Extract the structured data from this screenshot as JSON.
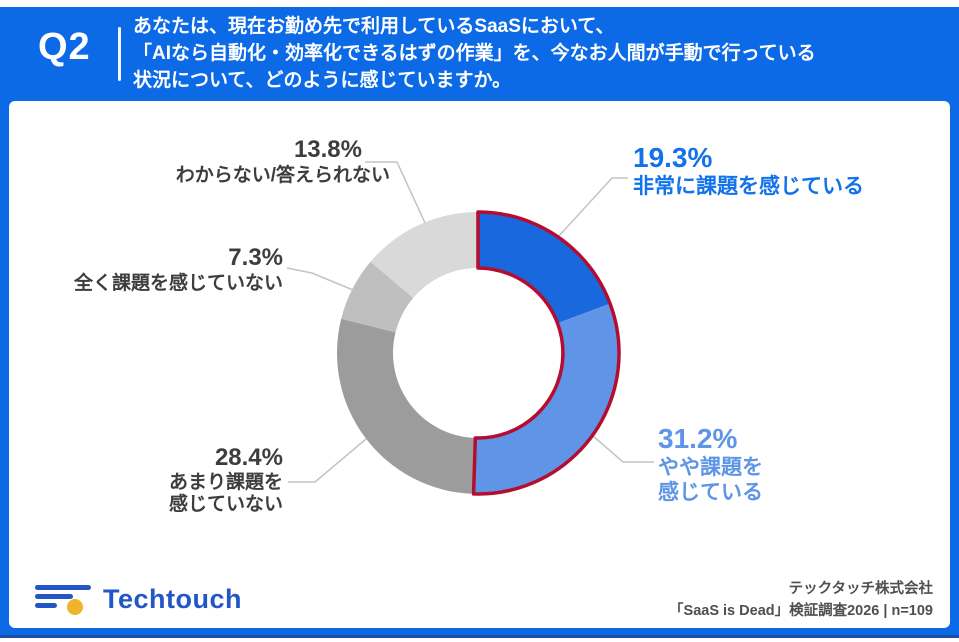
{
  "header": {
    "question_no": "Q2",
    "question_lines": [
      "あなたは、現在お勤め先で利用しているSaaSにおいて、",
      "「AIなら自動化・効率化できるはずの作業」を、今なお人間が手動で行っている",
      "状況について、どのように感じていますか。"
    ]
  },
  "chart_data": {
    "type": "pie",
    "subtype": "donut",
    "unit": "%",
    "start_angle_deg": 0,
    "direction": "clockwise",
    "segments": [
      {
        "label": "非常に課題を感じている",
        "value": 19.3,
        "color": "#1a68de",
        "highlighted": true
      },
      {
        "label": "やや課題を感じている",
        "value": 31.2,
        "color": "#6094e6",
        "highlighted": true
      },
      {
        "label": "あまり課題を感じていない",
        "value": 28.4,
        "color": "#9c9c9c",
        "highlighted": false
      },
      {
        "label": "全く課題を感じていない",
        "value": 7.3,
        "color": "#bfbfbf",
        "highlighted": false
      },
      {
        "label": "わからない/答えられない",
        "value": 13.8,
        "color": "#d9d9d9",
        "highlighted": false
      }
    ],
    "highlight_outline_color": "#b50d2f",
    "connector_color": "#c4c4c4"
  },
  "callouts": {
    "c193": {
      "pct": "19.3%",
      "line1": "非常に課題を感じている",
      "line2": ""
    },
    "c312": {
      "pct": "31.2%",
      "line1": "やや課題を",
      "line2": "感じている"
    },
    "c284": {
      "pct": "28.4%",
      "line1": "あまり課題を",
      "line2": "感じていない"
    },
    "c73": {
      "pct": "7.3%",
      "line1": "全く課題を感じていない",
      "line2": ""
    },
    "c138": {
      "pct": "13.8%",
      "line1": "わからない/答えられない",
      "line2": ""
    }
  },
  "footer": {
    "logo_text": "Techtouch",
    "source_line1": "テックタッチ株式会社",
    "source_line2": "「SaaS is Dead」検証調査2026 | n=109",
    "logo_blue": "#2356c7",
    "logo_yellow": "#f0b32c"
  }
}
